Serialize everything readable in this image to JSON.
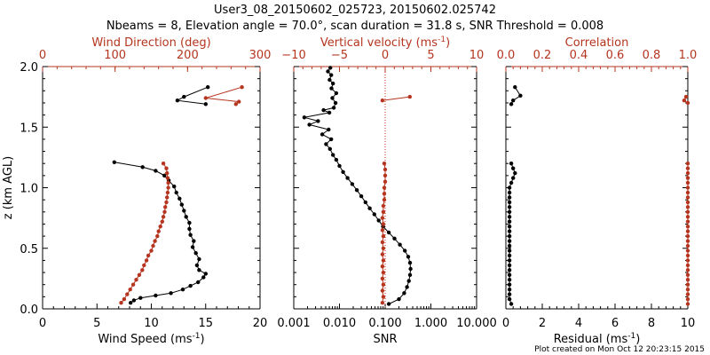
{
  "header": {
    "line1": "User3_08_20150602_025723, 20150602.025742",
    "line2": "Nbeams = 8, Elevation angle = 70.0°, scan duration = 31.8 s, SNR Threshold = 0.008"
  },
  "footer": {
    "created": "Plot created on Mon Oct 12 20:23:15 2015"
  },
  "colors": {
    "black": "#000000",
    "red": "#b5351f",
    "dotted": "#cc2a10"
  },
  "chart_data": [
    {
      "type": "scatter",
      "name": "wind-panel",
      "ylabel": "z (km AGL)",
      "ylim": [
        0,
        2.0
      ],
      "yticks": [
        "0.0",
        "0.5",
        "1.0",
        "1.5",
        "2.0"
      ],
      "bottom_axis": {
        "label": "Wind Speed (ms",
        "label_sup": "-1",
        "label_end": ")",
        "lim": [
          0,
          20
        ],
        "ticks": [
          "0",
          "5",
          "10",
          "15",
          "20"
        ]
      },
      "top_axis": {
        "label": "Wind Direction (deg)",
        "lim": [
          0,
          360
        ],
        "ticks": [
          "0",
          "100",
          "200",
          "300"
        ]
      },
      "series": [
        {
          "name": "Wind Speed",
          "axis": "bottom",
          "color": "black",
          "segments": [
            [
              [
                8.1,
                0.05
              ],
              [
                8.4,
                0.07
              ],
              [
                9.0,
                0.09
              ],
              [
                10.4,
                0.11
              ],
              [
                11.8,
                0.13
              ],
              [
                12.9,
                0.16
              ],
              [
                13.6,
                0.19
              ],
              [
                14.3,
                0.22
              ],
              [
                14.8,
                0.26
              ],
              [
                15.0,
                0.29
              ],
              [
                14.4,
                0.32
              ],
              [
                14.2,
                0.36
              ],
              [
                14.4,
                0.41
              ],
              [
                14.1,
                0.46
              ],
              [
                13.8,
                0.51
              ],
              [
                13.9,
                0.56
              ],
              [
                13.6,
                0.61
              ],
              [
                13.5,
                0.66
              ],
              [
                13.5,
                0.71
              ],
              [
                13.2,
                0.76
              ],
              [
                13.0,
                0.81
              ],
              [
                12.8,
                0.86
              ],
              [
                12.6,
                0.91
              ],
              [
                12.3,
                0.96
              ],
              [
                12.1,
                1.01
              ],
              [
                11.6,
                1.06
              ],
              [
                11.2,
                1.1
              ],
              [
                10.4,
                1.14
              ],
              [
                9.2,
                1.17
              ],
              [
                6.6,
                1.21
              ]
            ],
            [
              [
                15.2,
                1.83
              ],
              [
                13.0,
                1.75
              ],
              [
                12.4,
                1.72
              ],
              [
                15.0,
                1.69
              ]
            ]
          ]
        },
        {
          "name": "Wind Direction",
          "axis": "top",
          "color": "red",
          "segments": [
            [
              [
                130,
                0.05
              ],
              [
                135,
                0.08
              ],
              [
                140,
                0.12
              ],
              [
                145,
                0.16
              ],
              [
                150,
                0.2
              ],
              [
                155,
                0.24
              ],
              [
                160,
                0.28
              ],
              [
                165,
                0.32
              ],
              [
                168,
                0.36
              ],
              [
                172,
                0.4
              ],
              [
                175,
                0.44
              ],
              [
                180,
                0.48
              ],
              [
                183,
                0.52
              ],
              [
                186,
                0.56
              ],
              [
                190,
                0.6
              ],
              [
                192,
                0.64
              ],
              [
                195,
                0.68
              ],
              [
                198,
                0.72
              ],
              [
                200,
                0.76
              ],
              [
                202,
                0.8
              ],
              [
                203,
                0.84
              ],
              [
                205,
                0.88
              ],
              [
                206,
                0.92
              ],
              [
                207,
                0.96
              ],
              [
                208,
                1.0
              ],
              [
                208,
                1.04
              ],
              [
                207,
                1.08
              ],
              [
                206,
                1.12
              ],
              [
                205,
                1.16
              ],
              [
                200,
                1.2
              ]
            ],
            [
              [
                330,
                1.83
              ],
              [
                270,
                1.74
              ],
              [
                325,
                1.71
              ],
              [
                320,
                1.69
              ]
            ]
          ]
        }
      ]
    },
    {
      "type": "scatter",
      "name": "vertical-velocity-panel",
      "bottom_axis": {
        "label": "SNR",
        "scale": "log",
        "lim": [
          0.001,
          10
        ],
        "ticks": [
          "0.001",
          "0.010",
          "0.100",
          "1.000",
          "10.000"
        ]
      },
      "top_axis": {
        "label": "Vertical velocity (ms",
        "label_sup": "-1",
        "label_end": ")",
        "lim": [
          -10,
          10
        ],
        "ticks": [
          "−10",
          "−5",
          "0",
          "5",
          "10"
        ]
      },
      "reference_line": {
        "axis": "top",
        "value": 0,
        "style": "dotted"
      },
      "series": [
        {
          "name": "SNR",
          "axis": "bottom",
          "color": "black",
          "segments": [
            [
              [
                0.12,
                0.04
              ],
              [
                0.2,
                0.08
              ],
              [
                0.26,
                0.13
              ],
              [
                0.3,
                0.18
              ],
              [
                0.33,
                0.23
              ],
              [
                0.35,
                0.28
              ],
              [
                0.36,
                0.33
              ],
              [
                0.35,
                0.38
              ],
              [
                0.32,
                0.43
              ],
              [
                0.27,
                0.48
              ],
              [
                0.21,
                0.53
              ],
              [
                0.16,
                0.58
              ],
              [
                0.12,
                0.63
              ],
              [
                0.09,
                0.68
              ],
              [
                0.072,
                0.73
              ],
              [
                0.058,
                0.78
              ],
              [
                0.046,
                0.83
              ],
              [
                0.037,
                0.88
              ],
              [
                0.03,
                0.93
              ],
              [
                0.024,
                0.98
              ],
              [
                0.019,
                1.03
              ],
              [
                0.015,
                1.08
              ],
              [
                0.012,
                1.13
              ],
              [
                0.01,
                1.18
              ],
              [
                0.0085,
                1.23
              ],
              [
                0.0072,
                1.27
              ],
              [
                0.0062,
                1.32
              ],
              [
                0.0051,
                1.36
              ],
              [
                0.0066,
                1.4
              ],
              [
                0.0042,
                1.44
              ],
              [
                0.0058,
                1.48
              ],
              [
                0.0022,
                1.52
              ],
              [
                0.0034,
                1.55
              ],
              [
                0.0017,
                1.58
              ],
              [
                0.006,
                1.62
              ],
              [
                0.0045,
                1.64
              ],
              [
                0.0075,
                1.66
              ],
              [
                0.0082,
                1.7
              ],
              [
                0.007,
                1.74
              ],
              [
                0.0085,
                1.78
              ],
              [
                0.0067,
                1.82
              ],
              [
                0.0072,
                1.86
              ],
              [
                0.0061,
                1.89
              ],
              [
                0.0066,
                1.93
              ],
              [
                0.0056,
                1.96
              ],
              [
                0.0063,
                1.99
              ]
            ]
          ]
        },
        {
          "name": "Vertical velocity",
          "axis": "top",
          "color": "red",
          "segments": [
            [
              [
                -0.3,
                0.05
              ],
              [
                -0.2,
                0.1
              ],
              [
                -0.3,
                0.15
              ],
              [
                -0.2,
                0.2
              ],
              [
                -0.3,
                0.25
              ],
              [
                -0.2,
                0.3
              ],
              [
                -0.3,
                0.35
              ],
              [
                -0.2,
                0.4
              ],
              [
                -0.3,
                0.45
              ],
              [
                -0.2,
                0.5
              ],
              [
                -0.3,
                0.55
              ],
              [
                -0.2,
                0.6
              ],
              [
                -0.3,
                0.65
              ],
              [
                -0.2,
                0.7
              ],
              [
                -0.3,
                0.75
              ],
              [
                -0.2,
                0.8
              ],
              [
                -0.2,
                0.85
              ],
              [
                -0.1,
                0.9
              ],
              [
                -0.1,
                0.95
              ],
              [
                -0.1,
                1.0
              ],
              [
                0.0,
                1.05
              ],
              [
                0.0,
                1.1
              ],
              [
                0.0,
                1.15
              ],
              [
                -0.1,
                1.2
              ]
            ],
            [
              [
                -0.3,
                1.72
              ],
              [
                2.7,
                1.75
              ]
            ]
          ]
        }
      ]
    },
    {
      "type": "scatter",
      "name": "correlation-panel",
      "bottom_axis": {
        "label": "Residual (ms",
        "label_sup": "-1",
        "label_end": ")",
        "lim": [
          0,
          10
        ],
        "ticks": [
          "0",
          "2",
          "4",
          "6",
          "8",
          "10"
        ]
      },
      "top_axis": {
        "label": "Correlation",
        "lim": [
          0,
          1
        ],
        "ticks": [
          "0.0",
          "0.2",
          "0.4",
          "0.6",
          "0.8",
          "1.0"
        ]
      },
      "series": [
        {
          "name": "Residual",
          "axis": "bottom",
          "color": "black",
          "segments": [
            [
              [
                0.3,
                0.04
              ],
              [
                0.2,
                0.08
              ],
              [
                0.2,
                0.12
              ],
              [
                0.2,
                0.16
              ],
              [
                0.2,
                0.2
              ],
              [
                0.2,
                0.24
              ],
              [
                0.2,
                0.28
              ],
              [
                0.2,
                0.32
              ],
              [
                0.2,
                0.36
              ],
              [
                0.2,
                0.4
              ],
              [
                0.2,
                0.44
              ],
              [
                0.2,
                0.48
              ],
              [
                0.2,
                0.52
              ],
              [
                0.2,
                0.56
              ],
              [
                0.2,
                0.6
              ],
              [
                0.2,
                0.64
              ],
              [
                0.2,
                0.68
              ],
              [
                0.2,
                0.72
              ],
              [
                0.2,
                0.76
              ],
              [
                0.2,
                0.8
              ],
              [
                0.2,
                0.84
              ],
              [
                0.2,
                0.88
              ],
              [
                0.2,
                0.92
              ],
              [
                0.2,
                0.96
              ],
              [
                0.2,
                1.0
              ],
              [
                0.3,
                1.04
              ],
              [
                0.4,
                1.08
              ],
              [
                0.5,
                1.12
              ],
              [
                0.4,
                1.16
              ],
              [
                0.3,
                1.2
              ]
            ],
            [
              [
                0.5,
                1.83
              ],
              [
                0.8,
                1.76
              ],
              [
                0.4,
                1.72
              ],
              [
                0.3,
                1.69
              ]
            ]
          ]
        },
        {
          "name": "Correlation",
          "axis": "top",
          "color": "red",
          "segments": [
            [
              [
                1.0,
                0.04
              ],
              [
                1.0,
                0.08
              ],
              [
                1.0,
                0.12
              ],
              [
                1.0,
                0.16
              ],
              [
                1.0,
                0.2
              ],
              [
                1.0,
                0.24
              ],
              [
                1.0,
                0.28
              ],
              [
                1.0,
                0.32
              ],
              [
                1.0,
                0.36
              ],
              [
                1.0,
                0.4
              ],
              [
                1.0,
                0.44
              ],
              [
                1.0,
                0.48
              ],
              [
                1.0,
                0.52
              ],
              [
                1.0,
                0.56
              ],
              [
                1.0,
                0.6
              ],
              [
                1.0,
                0.64
              ],
              [
                1.0,
                0.68
              ],
              [
                1.0,
                0.72
              ],
              [
                1.0,
                0.76
              ],
              [
                1.0,
                0.8
              ],
              [
                1.0,
                0.84
              ],
              [
                1.0,
                0.88
              ],
              [
                1.0,
                0.92
              ],
              [
                1.0,
                0.96
              ],
              [
                1.0,
                1.0
              ],
              [
                1.0,
                1.04
              ],
              [
                1.0,
                1.08
              ],
              [
                1.0,
                1.12
              ],
              [
                1.0,
                1.16
              ],
              [
                1.0,
                1.2
              ]
            ],
            [
              [
                0.99,
                1.75
              ],
              [
                0.98,
                1.72
              ],
              [
                1.0,
                1.7
              ]
            ]
          ]
        }
      ]
    }
  ]
}
